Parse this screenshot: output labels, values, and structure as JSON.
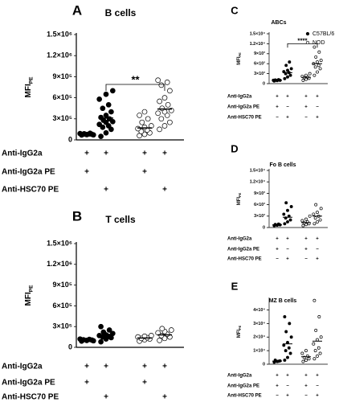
{
  "chart_data": [
    {
      "type": "dotplot",
      "panel": "A",
      "title": "B cells",
      "ylabel": "MFI",
      "ylabel_sub": "PE",
      "ylim": [
        0,
        1500000
      ],
      "yticks": [
        0,
        {
          "value": 300000,
          "label": "3×10⁵"
        },
        {
          "value": 600000,
          "label": "6×10⁵"
        },
        {
          "value": 900000,
          "label": "9×10⁵"
        },
        {
          "value": 1200000,
          "label": "1.2×10⁶"
        },
        {
          "value": 1500000,
          "label": "1.5×10⁶"
        }
      ],
      "groups": [
        {
          "filled": true,
          "values": [
            70000,
            75000,
            80000,
            82000,
            85000,
            90000,
            78000,
            72000,
            88000,
            95000
          ],
          "mean": 82000
        },
        {
          "filled": true,
          "values": [
            50000,
            100000,
            150000,
            180000,
            200000,
            220000,
            250000,
            260000,
            280000,
            300000,
            320000,
            350000,
            400000,
            450000,
            500000,
            580000,
            650000,
            700000
          ],
          "mean": 310000
        },
        {
          "filled": false,
          "values": [
            60000,
            80000,
            100000,
            120000,
            140000,
            160000,
            180000,
            200000,
            250000,
            300000,
            350000,
            400000
          ],
          "mean": 170000
        },
        {
          "filled": false,
          "values": [
            150000,
            200000,
            250000,
            300000,
            350000,
            380000,
            400000,
            420000,
            450000,
            500000,
            550000,
            600000,
            700000,
            780000,
            820000,
            850000
          ],
          "mean": 440000
        }
      ],
      "significance": {
        "from": 1,
        "to": 3,
        "y": 790000,
        "label": "**"
      },
      "rows": [
        {
          "label": "Anti-IgG2a",
          "signs": [
            "+",
            "+",
            "+",
            "+"
          ]
        },
        {
          "label": "Anti-IgG2a PE",
          "signs": [
            "+",
            null,
            "+",
            null
          ]
        },
        {
          "label": "Anti-HSC70  PE",
          "signs": [
            null,
            "+",
            null,
            "+"
          ]
        }
      ]
    },
    {
      "type": "dotplot",
      "panel": "B",
      "title": "T cells",
      "ylabel": "MFI",
      "ylabel_sub": "PE",
      "ylim": [
        0,
        1500000
      ],
      "yticks": [
        0,
        {
          "value": 300000,
          "label": "3×10⁵"
        },
        {
          "value": 600000,
          "label": "6×10⁵"
        },
        {
          "value": 900000,
          "label": "9×10⁵"
        },
        {
          "value": 1200000,
          "label": "1.2×10⁶"
        },
        {
          "value": 1500000,
          "label": "1.5×10⁶"
        }
      ],
      "groups": [
        {
          "filled": true,
          "values": [
            90000,
            100000,
            105000,
            110000,
            115000,
            120000,
            100000,
            95000
          ],
          "mean": 108000
        },
        {
          "filled": true,
          "values": [
            80000,
            120000,
            140000,
            150000,
            160000,
            170000,
            180000,
            200000,
            220000,
            250000,
            300000
          ],
          "mean": 170000
        },
        {
          "filled": false,
          "values": [
            90000,
            110000,
            120000,
            130000,
            140000,
            150000,
            160000,
            170000
          ],
          "mean": 135000
        },
        {
          "filled": false,
          "values": [
            100000,
            130000,
            150000,
            170000,
            190000,
            210000,
            230000,
            250000,
            270000
          ],
          "mean": 180000
        }
      ],
      "rows": [
        {
          "label": "Anti-IgG2a",
          "signs": [
            "+",
            "+",
            "+",
            "+"
          ]
        },
        {
          "label": "Anti-IgG2a PE",
          "signs": [
            "+",
            null,
            "+",
            null
          ]
        },
        {
          "label": "Anti-HSC70  PE",
          "signs": [
            null,
            "+",
            null,
            "+"
          ]
        }
      ]
    },
    {
      "type": "dotplot",
      "panel": "C",
      "title": "ABCs",
      "ylabel": "MFI",
      "ylabel_sub": "PE",
      "ylim": [
        0,
        15000
      ],
      "yticks": [
        0,
        {
          "value": 3000,
          "label": "3×10³"
        },
        {
          "value": 6000,
          "label": "6×10³"
        },
        {
          "value": 9000,
          "label": "9×10³"
        },
        {
          "value": 12000,
          "label": "1.2×10⁴"
        },
        {
          "value": 15000,
          "label": "1.5×10⁴"
        }
      ],
      "legend": [
        {
          "name": "C57BL/6",
          "filled": true
        },
        {
          "name": "NOD",
          "filled": false
        }
      ],
      "groups": [
        {
          "filled": true,
          "values": [
            800,
            900,
            1000,
            1100,
            1200,
            1000,
            950
          ],
          "mean": 1000
        },
        {
          "filled": true,
          "values": [
            1500,
            2000,
            2500,
            3000,
            3300,
            3600,
            4000,
            4500,
            5500,
            6500
          ],
          "mean": 3300
        },
        {
          "filled": false,
          "values": [
            1000,
            1300,
            1600,
            1800,
            2000,
            2200,
            2500,
            3000
          ],
          "mean": 1900
        },
        {
          "filled": false,
          "values": [
            2500,
            3500,
            4500,
            5000,
            5500,
            6000,
            6500,
            7000,
            8000,
            9500,
            11000
          ],
          "mean": 6000
        }
      ],
      "significance": {
        "from": 1,
        "to": 3,
        "y": 12000,
        "label": "****"
      },
      "rows": [
        {
          "label": "Anti-IgG2a",
          "signs": [
            "+",
            "+",
            "+",
            "+"
          ]
        },
        {
          "label": "Anti-IgG2a PE",
          "signs": [
            "+",
            "−",
            "+",
            "−"
          ]
        },
        {
          "label": "Anti-HSC70 PE",
          "signs": [
            "−",
            "+",
            "−",
            "+"
          ]
        }
      ]
    },
    {
      "type": "dotplot",
      "panel": "D",
      "title": "Fo B cells",
      "ylabel": "MFI",
      "ylabel_sub": "PE",
      "ylim": [
        0,
        15000
      ],
      "yticks": [
        0,
        {
          "value": 3000,
          "label": "3×10³"
        },
        {
          "value": 6000,
          "label": "6×10³"
        },
        {
          "value": 9000,
          "label": "9×10³"
        },
        {
          "value": 12000,
          "label": "1.2×10⁴"
        },
        {
          "value": 15000,
          "label": "1.5×10⁴"
        }
      ],
      "groups": [
        {
          "filled": true,
          "values": [
            500,
            600,
            700,
            800,
            900
          ],
          "mean": 700
        },
        {
          "filled": true,
          "values": [
            1000,
            1500,
            2000,
            2500,
            3000,
            3500,
            4500,
            5500,
            6500
          ],
          "mean": 2700
        },
        {
          "filled": false,
          "values": [
            500,
            800,
            1000,
            1200,
            1500,
            1800,
            2200,
            3000
          ],
          "mean": 1300
        },
        {
          "filled": false,
          "values": [
            1000,
            1500,
            2000,
            2500,
            3000,
            3500,
            4000,
            5000,
            6000
          ],
          "mean": 3000
        }
      ],
      "rows": [
        {
          "label": "Anti-IgG2a",
          "signs": [
            "+",
            "+",
            "+",
            "+"
          ]
        },
        {
          "label": "Anti-IgG2a PE",
          "signs": [
            "+",
            "−",
            "+",
            "−"
          ]
        },
        {
          "label": "Anti-HSC70 PE",
          "signs": [
            "−",
            "+",
            "−",
            "+"
          ]
        }
      ]
    },
    {
      "type": "dotplot",
      "panel": "E",
      "title": "MZ B cells",
      "ylabel": "MFI",
      "ylabel_sub": "PE",
      "ylim": [
        0,
        48000
      ],
      "yticks": [
        0,
        {
          "value": 10000,
          "label": "1×10⁴"
        },
        {
          "value": 20000,
          "label": "2×10⁴"
        },
        {
          "value": 30000,
          "label": "3×10⁴"
        },
        {
          "value": 40000,
          "label": "4×10⁴"
        }
      ],
      "groups": [
        {
          "filled": true,
          "values": [
            1500,
            2000,
            2500,
            3000,
            2200
          ],
          "mean": 2300
        },
        {
          "filled": true,
          "values": [
            3000,
            5000,
            8000,
            10000,
            12000,
            14000,
            16000,
            20000,
            24000,
            30000,
            35000
          ],
          "mean": 15000
        },
        {
          "filled": false,
          "values": [
            2000,
            3000,
            4000,
            5000,
            6000,
            8000,
            10000
          ],
          "mean": 5500
        },
        {
          "filled": false,
          "values": [
            4000,
            6000,
            8000,
            10000,
            12000,
            15000,
            18000,
            20000,
            25000,
            35000,
            47000
          ],
          "mean": 17000
        }
      ],
      "rows": [
        {
          "label": "Anti-IgG2a",
          "signs": [
            "+",
            "+",
            "+",
            "+"
          ]
        },
        {
          "label": "Anti-IgG2a PE",
          "signs": [
            "+",
            "−",
            "+",
            "−"
          ]
        },
        {
          "label": "Anti-HSC70 PE",
          "signs": [
            "−",
            "+",
            "−",
            "+"
          ]
        }
      ]
    }
  ]
}
